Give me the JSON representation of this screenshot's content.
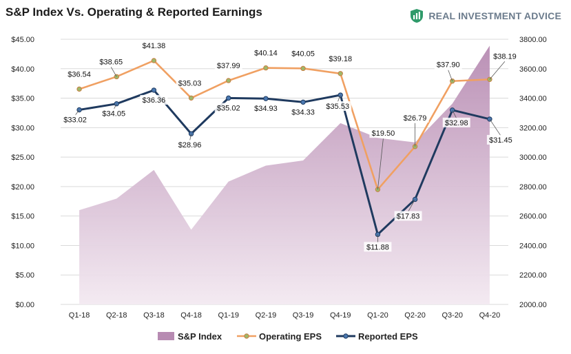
{
  "header": {
    "title": "S&P Index Vs. Operating & Reported Earnings",
    "brand": "REAL INVESTMENT ADVICE"
  },
  "chart_data": {
    "type": "line",
    "categories": [
      "Q1-18",
      "Q2-18",
      "Q3-18",
      "Q4-18",
      "Q1-19",
      "Q2-19",
      "Q3-19",
      "Q4-19",
      "Q1-20",
      "Q2-20",
      "Q3-20",
      "Q4-20"
    ],
    "y_left_ticks": [
      "$0.00",
      "$5.00",
      "$10.00",
      "$15.00",
      "$20.00",
      "$25.00",
      "$30.00",
      "$35.00",
      "$40.00",
      "$45.00"
    ],
    "y_right_ticks": [
      "2000.00",
      "2200.00",
      "2400.00",
      "2600.00",
      "2800.00",
      "3000.00",
      "3200.00",
      "3400.00",
      "3600.00",
      "3800.00"
    ],
    "ylim_left": [
      0,
      45
    ],
    "ylim_right": [
      2000,
      3800
    ],
    "series": [
      {
        "name": "S&P Index",
        "kind": "area",
        "axis": "right",
        "values": [
          2640,
          2718,
          2913,
          2507,
          2834,
          2942,
          2977,
          3231,
          3130,
          3100,
          3363,
          3756
        ]
      },
      {
        "name": "Operating EPS",
        "kind": "line",
        "axis": "left",
        "values": [
          36.54,
          38.65,
          41.38,
          35.03,
          37.99,
          40.14,
          40.05,
          39.18,
          19.5,
          26.79,
          37.9,
          38.19
        ],
        "labels": [
          "$36.54",
          "$38.65",
          "$41.38",
          "$35.03",
          "$37.99",
          "$40.14",
          "$40.05",
          "$39.18",
          "$19.50",
          "$26.79",
          "$37.90",
          "$38.19"
        ]
      },
      {
        "name": "Reported EPS",
        "kind": "line",
        "axis": "left",
        "values": [
          33.02,
          34.05,
          36.36,
          28.96,
          35.02,
          34.93,
          34.33,
          35.53,
          11.88,
          17.83,
          32.98,
          31.45
        ],
        "labels": [
          "$33.02",
          "$34.05",
          "$36.36",
          "$28.96",
          "$35.02",
          "$34.93",
          "$34.33",
          "$35.53",
          "$11.88",
          "$17.83",
          "$32.98",
          "$31.45"
        ]
      }
    ],
    "colors": {
      "area_top": "#b78bb2",
      "area_bottom": "#f3e9f1",
      "operating": "#f0a062",
      "operating_marker": "#9fb86a",
      "reported": "#1f3a5f",
      "reported_marker": "#4a78b0"
    },
    "legend_position": "bottom"
  }
}
